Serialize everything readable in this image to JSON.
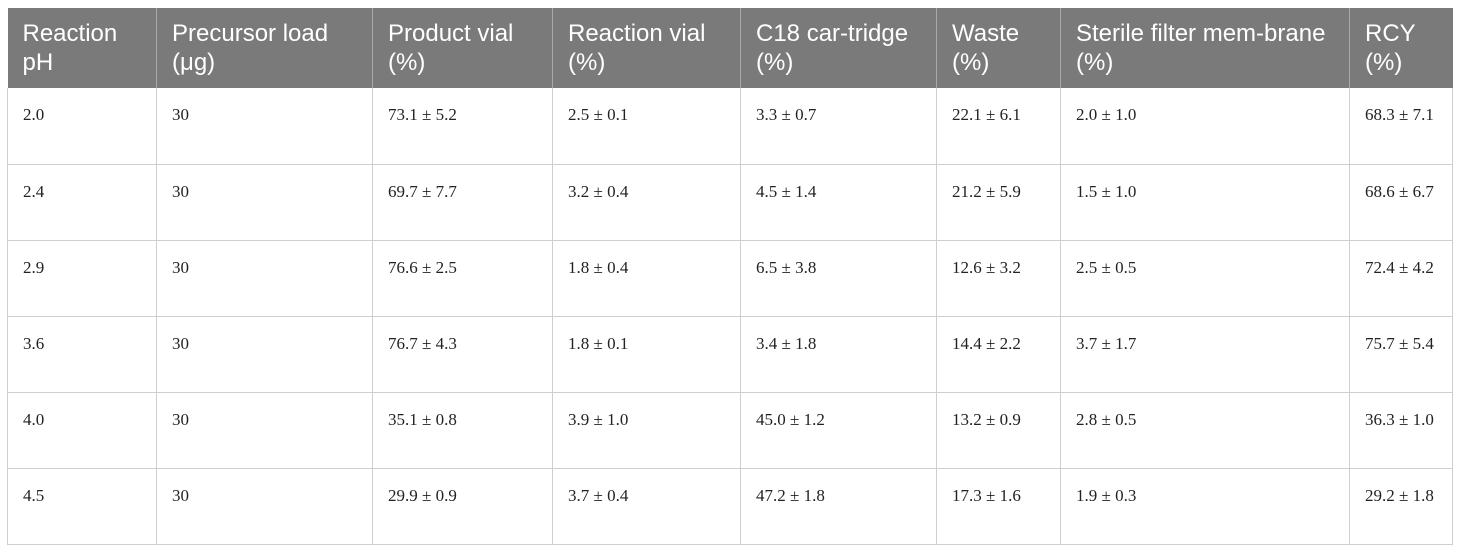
{
  "table": {
    "headers": [
      "Reaction pH",
      "Precursor load (μg)",
      "Product vial (%)",
      "Reaction vial (%)",
      "C18 car-tridge (%)",
      "Waste (%)",
      "Sterile filter mem-brane (%)",
      "RCY (%)"
    ],
    "rows": [
      [
        "2.0",
        "30",
        "73.1 ± 5.2",
        "2.5 ± 0.1",
        "3.3 ± 0.7",
        "22.1 ± 6.1",
        "2.0 ± 1.0",
        "68.3 ± 7.1"
      ],
      [
        "2.4",
        "30",
        "69.7 ± 7.7",
        "3.2 ± 0.4",
        "4.5 ± 1.4",
        "21.2 ± 5.9",
        "1.5 ± 1.0",
        "68.6 ± 6.7"
      ],
      [
        "2.9",
        "30",
        "76.6 ± 2.5",
        "1.8 ± 0.4",
        "6.5 ± 3.8",
        "12.6 ± 3.2",
        "2.5 ± 0.5",
        "72.4 ± 4.2"
      ],
      [
        "3.6",
        "30",
        "76.7 ± 4.3",
        "1.8 ± 0.1",
        "3.4 ± 1.8",
        "14.4 ± 2.2",
        "3.7 ± 1.7",
        "75.7 ± 5.4"
      ],
      [
        "4.0",
        "30",
        "35.1 ± 0.8",
        "3.9 ± 1.0",
        "45.0 ± 1.2",
        "13.2 ± 0.9",
        "2.8 ± 0.5",
        "36.3 ± 1.0"
      ],
      [
        "4.5",
        "30",
        "29.9 ± 0.9",
        "3.7 ± 0.4",
        "47.2 ± 1.8",
        "17.3 ± 1.6",
        "1.9 ± 0.3",
        "29.2 ± 1.8"
      ]
    ]
  }
}
